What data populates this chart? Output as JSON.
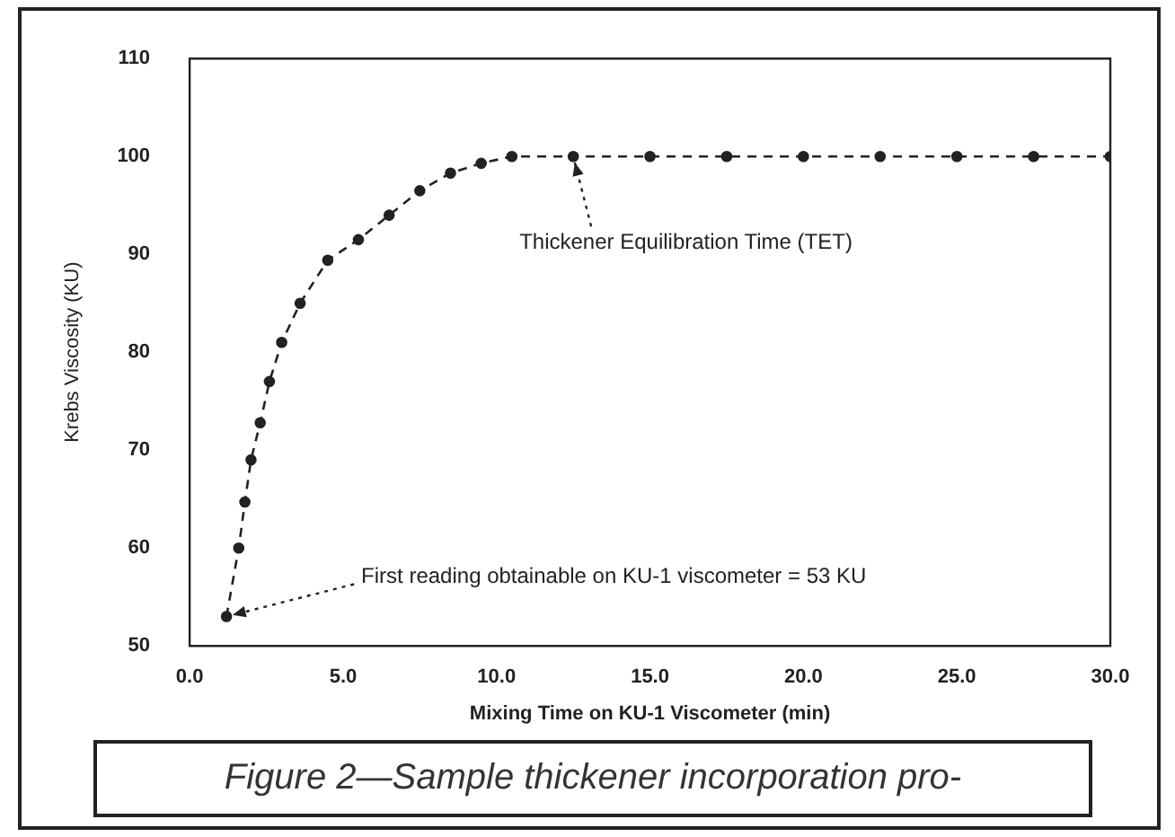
{
  "chart_data": {
    "type": "line",
    "xlabel": "Mixing Time on KU-1 Viscometer (min)",
    "ylabel": "Krebs Viscosity (KU)",
    "x": [
      1.2,
      1.6,
      1.8,
      2.0,
      2.3,
      2.6,
      3.0,
      3.6,
      4.5,
      5.5,
      6.5,
      7.5,
      8.5,
      9.5,
      10.5,
      12.5,
      15,
      17.5,
      20,
      22.5,
      25,
      27.5,
      30
    ],
    "series": [
      {
        "color": "#222222",
        "values": [
          53,
          60,
          64.7,
          69,
          72.8,
          77,
          81,
          85,
          89.4,
          91.5,
          94,
          96.5,
          98.3,
          99.3,
          100,
          100,
          100,
          100,
          100,
          100,
          100,
          100,
          100
        ]
      }
    ],
    "xlim": [
      0,
      30
    ],
    "xticks": [
      {
        "value": 0,
        "label": "0.0"
      },
      {
        "value": 5,
        "label": "5.0"
      },
      {
        "value": 10,
        "label": "10.0"
      },
      {
        "value": 15,
        "label": "15.0"
      },
      {
        "value": 20,
        "label": "20.0"
      },
      {
        "value": 25,
        "label": "25.0"
      },
      {
        "value": 30,
        "label": "30.0"
      }
    ],
    "ylim": [
      50,
      110
    ],
    "yticks": [
      50,
      60,
      70,
      80,
      90,
      100,
      110
    ],
    "grid": false,
    "legend": false,
    "marker": "circle",
    "line_style": "dashed",
    "annotations": [
      {
        "text": "Thickener Equilibration Time (TET)",
        "x": 12.5,
        "y": 100
      },
      {
        "text": "First reading obtainable on KU-1 viscometer = 53 KU",
        "x": 1.2,
        "y": 53
      },
      "Figure 2—Sample thickener incorporation pro-"
    ]
  }
}
